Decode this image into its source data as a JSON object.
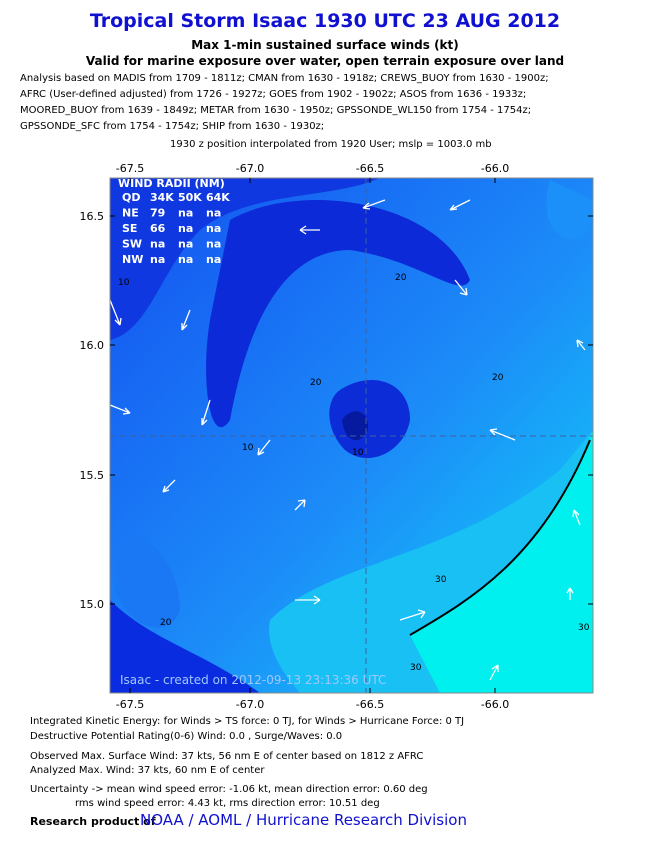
{
  "header": {
    "title": "Tropical Storm Isaac 1930 UTC 23 AUG 2012",
    "subtitle": "Max 1-min sustained surface winds (kt)",
    "valid": "Valid for marine exposure over water, open terrain exposure over land",
    "analysis": [
      "Analysis based on MADIS from 1709 - 1811z; CMAN from 1630 - 1918z; CREWS_BUOY from 1630 - 1900z;",
      "AFRC (User-defined adjusted) from 1726 - 1927z; GOES from 1902 - 1902z; ASOS from 1636 - 1933z;",
      "MOORED_BUOY from 1639 - 1849z; METAR from 1630 - 1950z; GPSSONDE_WL150 from 1754 - 1754z;",
      "GPSSONDE_SFC from 1754 - 1754z; SHIP from 1630 - 1930z;"
    ],
    "position": "1930 z position interpolated from 1920 User; mslp = 1003.0 mb"
  },
  "map": {
    "lon_ticks": [
      "-67.5",
      "-67.0",
      "-66.5",
      "-66.0"
    ],
    "lat_ticks": [
      "16.5",
      "16.0",
      "15.5",
      "15.0"
    ],
    "wind_radii": {
      "title": "WIND RADII (NM)",
      "rows": [
        [
          "QD",
          "34K",
          "50K",
          "64K"
        ],
        [
          "NE",
          "79",
          "na",
          "na"
        ],
        [
          "SE",
          "66",
          "na",
          "na"
        ],
        [
          "SW",
          "na",
          "na",
          "na"
        ],
        [
          "NW",
          "na",
          "na",
          "na"
        ]
      ]
    },
    "contour_labels": [
      "10",
      "10",
      "20",
      "10",
      "20",
      "20",
      "20",
      "30",
      "30",
      "30"
    ],
    "watermark": "Isaac - created on 2012-09-13 23:13:36 UTC"
  },
  "footer": {
    "lines": [
      "Integrated Kinetic Energy: for Winds > TS force: 0 TJ, for Winds > Hurricane Force: 0 TJ",
      "Destructive Potential Rating(0-6)  Wind: 0.0 , Surge/Waves: 0.0",
      "Observed Max. Surface Wind: 37 kts, 56 nm E of center based on 1812 z AFRC",
      "Analyzed Max. Wind: 37 kts, 60 nm  E of center",
      "Uncertainty -> mean wind speed error:  -1.06 kt, mean direction error: 0.60 deg",
      "rms wind speed error: 4.43 kt, rms direction error: 10.51 deg"
    ],
    "credit_label": "Research product of",
    "credit": "NOAA  /  AOML  /  Hurricane Research Division"
  }
}
